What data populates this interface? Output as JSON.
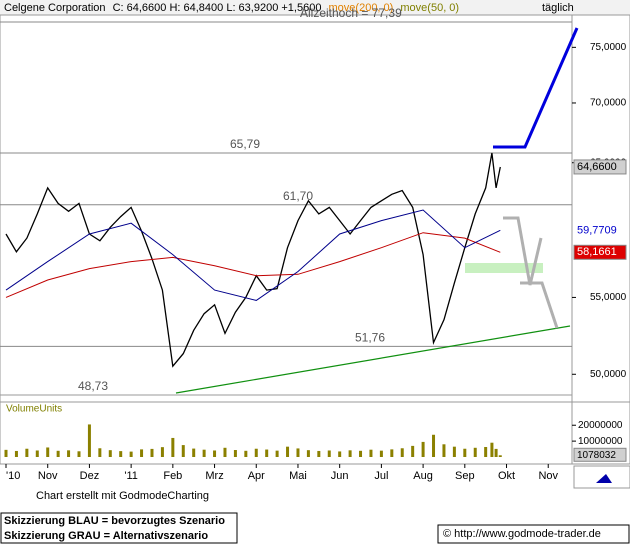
{
  "header": {
    "quote": "C: 64,6600 H: 64,8400 L: 63,9200 +1,5600",
    "period": "täglich"
  },
  "chart_data": [
    {
      "type": "line",
      "log_scale": true,
      "xlim": [
        -0.144,
        13.57
      ],
      "ylim": [
        48.55,
        78.75
      ],
      "xticks": [
        {
          "value": 0,
          "label": "'10"
        },
        {
          "value": 1,
          "label": "Nov"
        },
        {
          "value": 2,
          "label": "Dez"
        },
        {
          "value": 3,
          "label": "'11"
        },
        {
          "value": 4,
          "label": "Feb"
        },
        {
          "value": 5,
          "label": "Mrz"
        },
        {
          "value": 6,
          "label": "Apr"
        },
        {
          "value": 7,
          "label": "Mai"
        },
        {
          "value": 8,
          "label": "Jun"
        },
        {
          "value": 9,
          "label": "Jul"
        },
        {
          "value": 10,
          "label": "Aug"
        },
        {
          "value": 11,
          "label": "Sep"
        },
        {
          "value": 12,
          "label": "Okt"
        },
        {
          "value": 13,
          "label": "Nov"
        }
      ],
      "yticks": [
        {
          "value": 50,
          "label": "50,0000"
        },
        {
          "value": 55,
          "label": "55,0000"
        },
        {
          "value": 65,
          "label": "65,0000"
        },
        {
          "value": 70,
          "label": "70,0000"
        },
        {
          "value": 75,
          "label": "75,0000"
        }
      ],
      "levels": [
        {
          "value": 77.39,
          "label": "Allzeithoch  =  77,39"
        },
        {
          "value": 65.79,
          "label": "65,79"
        },
        {
          "value": 61.7,
          "label": "61,70"
        },
        {
          "value": 51.76,
          "label": "51,76"
        },
        {
          "value": 48.73,
          "label": "48,73"
        }
      ],
      "series": [
        {
          "name": "Celgene Corporation",
          "color": "#000000",
          "last_label": "64,6600",
          "x": [
            0,
            0.25,
            0.5,
            0.75,
            1,
            1.25,
            1.5,
            1.75,
            2,
            2.25,
            2.5,
            2.75,
            3,
            3.25,
            3.5,
            3.75,
            4,
            4.25,
            4.5,
            4.75,
            5,
            5.25,
            5.5,
            5.75,
            6,
            6.25,
            6.5,
            6.75,
            7,
            7.25,
            7.5,
            7.75,
            8,
            8.25,
            8.5,
            8.75,
            9,
            9.25,
            9.5,
            9.75,
            10,
            10.25,
            10.5,
            10.75,
            11,
            11.25,
            11.5,
            11.65,
            11.75,
            11.85
          ],
          "values": [
            59.5,
            58.2,
            59.2,
            61,
            63,
            61.8,
            61.2,
            61.8,
            59.5,
            59,
            60,
            60.8,
            61.5,
            59.7,
            57.7,
            55.5,
            50.5,
            51.3,
            52.8,
            53.9,
            54.5,
            52.6,
            54,
            55,
            56.5,
            55.5,
            55.6,
            58.5,
            60.5,
            62,
            61,
            61.5,
            60.5,
            59.5,
            60.5,
            61.5,
            62,
            62.5,
            62.8,
            61.5,
            58,
            52,
            53.5,
            56,
            58.5,
            61,
            63,
            65.79,
            63,
            64.66
          ]
        },
        {
          "name": "move(200, 0)",
          "color": "#c00000",
          "last_label": "58,1661",
          "x": [
            0,
            1,
            2,
            3,
            4,
            5,
            6,
            7,
            8,
            9,
            10,
            11,
            11.85
          ],
          "values": [
            55,
            56.2,
            57,
            57.5,
            57.8,
            57.2,
            56.5,
            56.6,
            57.5,
            58.5,
            59.6,
            59.2,
            58.1661
          ]
        },
        {
          "name": "move(50, 0)",
          "color": "#00008b",
          "last_label": "59,7709",
          "x": [
            0,
            1,
            2,
            3,
            4,
            5,
            6,
            7,
            8,
            9,
            10,
            11,
            11.85
          ],
          "values": [
            55.5,
            57.5,
            59.5,
            60.3,
            58,
            55.5,
            54.8,
            56.8,
            59.5,
            60.5,
            61.3,
            58.5,
            59.7709
          ]
        }
      ]
    },
    {
      "type": "bar",
      "title": "VolumeUnits",
      "color": "#8b8000",
      "xlim": [
        -0.144,
        13.57
      ],
      "ylim": [
        0,
        34000000
      ],
      "yticks": [
        10000000,
        20000000
      ],
      "last_label": "1078032",
      "x": [
        0,
        0.25,
        0.5,
        0.75,
        1,
        1.25,
        1.5,
        1.75,
        2,
        2.25,
        2.5,
        2.75,
        3,
        3.25,
        3.5,
        3.75,
        4,
        4.25,
        4.5,
        4.75,
        5,
        5.25,
        5.5,
        5.75,
        6,
        6.25,
        6.5,
        6.75,
        7,
        7.25,
        7.5,
        7.75,
        8,
        8.25,
        8.5,
        8.75,
        9,
        9.25,
        9.5,
        9.75,
        10,
        10.25,
        10.5,
        10.75,
        11,
        11.25,
        11.5,
        11.65,
        11.75,
        11.85
      ],
      "values": [
        4500000,
        3800000,
        5200000,
        4100000,
        6000000,
        3900000,
        4200000,
        3600000,
        20500000,
        5500000,
        4300000,
        3700000,
        3400000,
        4800000,
        5100000,
        6200000,
        12000000,
        7500000,
        5300000,
        4600000,
        4100000,
        5800000,
        4400000,
        3900000,
        5200000,
        4700000,
        4000000,
        6500000,
        5400000,
        4300000,
        3800000,
        4100000,
        3500000,
        4200000,
        3900000,
        4600000,
        4000000,
        4800000,
        5500000,
        7000000,
        9500000,
        14000000,
        8000000,
        6500000,
        5200000,
        5800000,
        6300000,
        9000000,
        5100000,
        1078032
      ]
    }
  ],
  "footer": {
    "credit": "Chart erstellt mit GodmodeCharting",
    "note_blue": "Skizzierung BLAU = bevorzugtes Szenario",
    "note_gray": "Skizzierung GRAU = Alternativszenario",
    "url": "© http://www.godmode-trader.de"
  }
}
